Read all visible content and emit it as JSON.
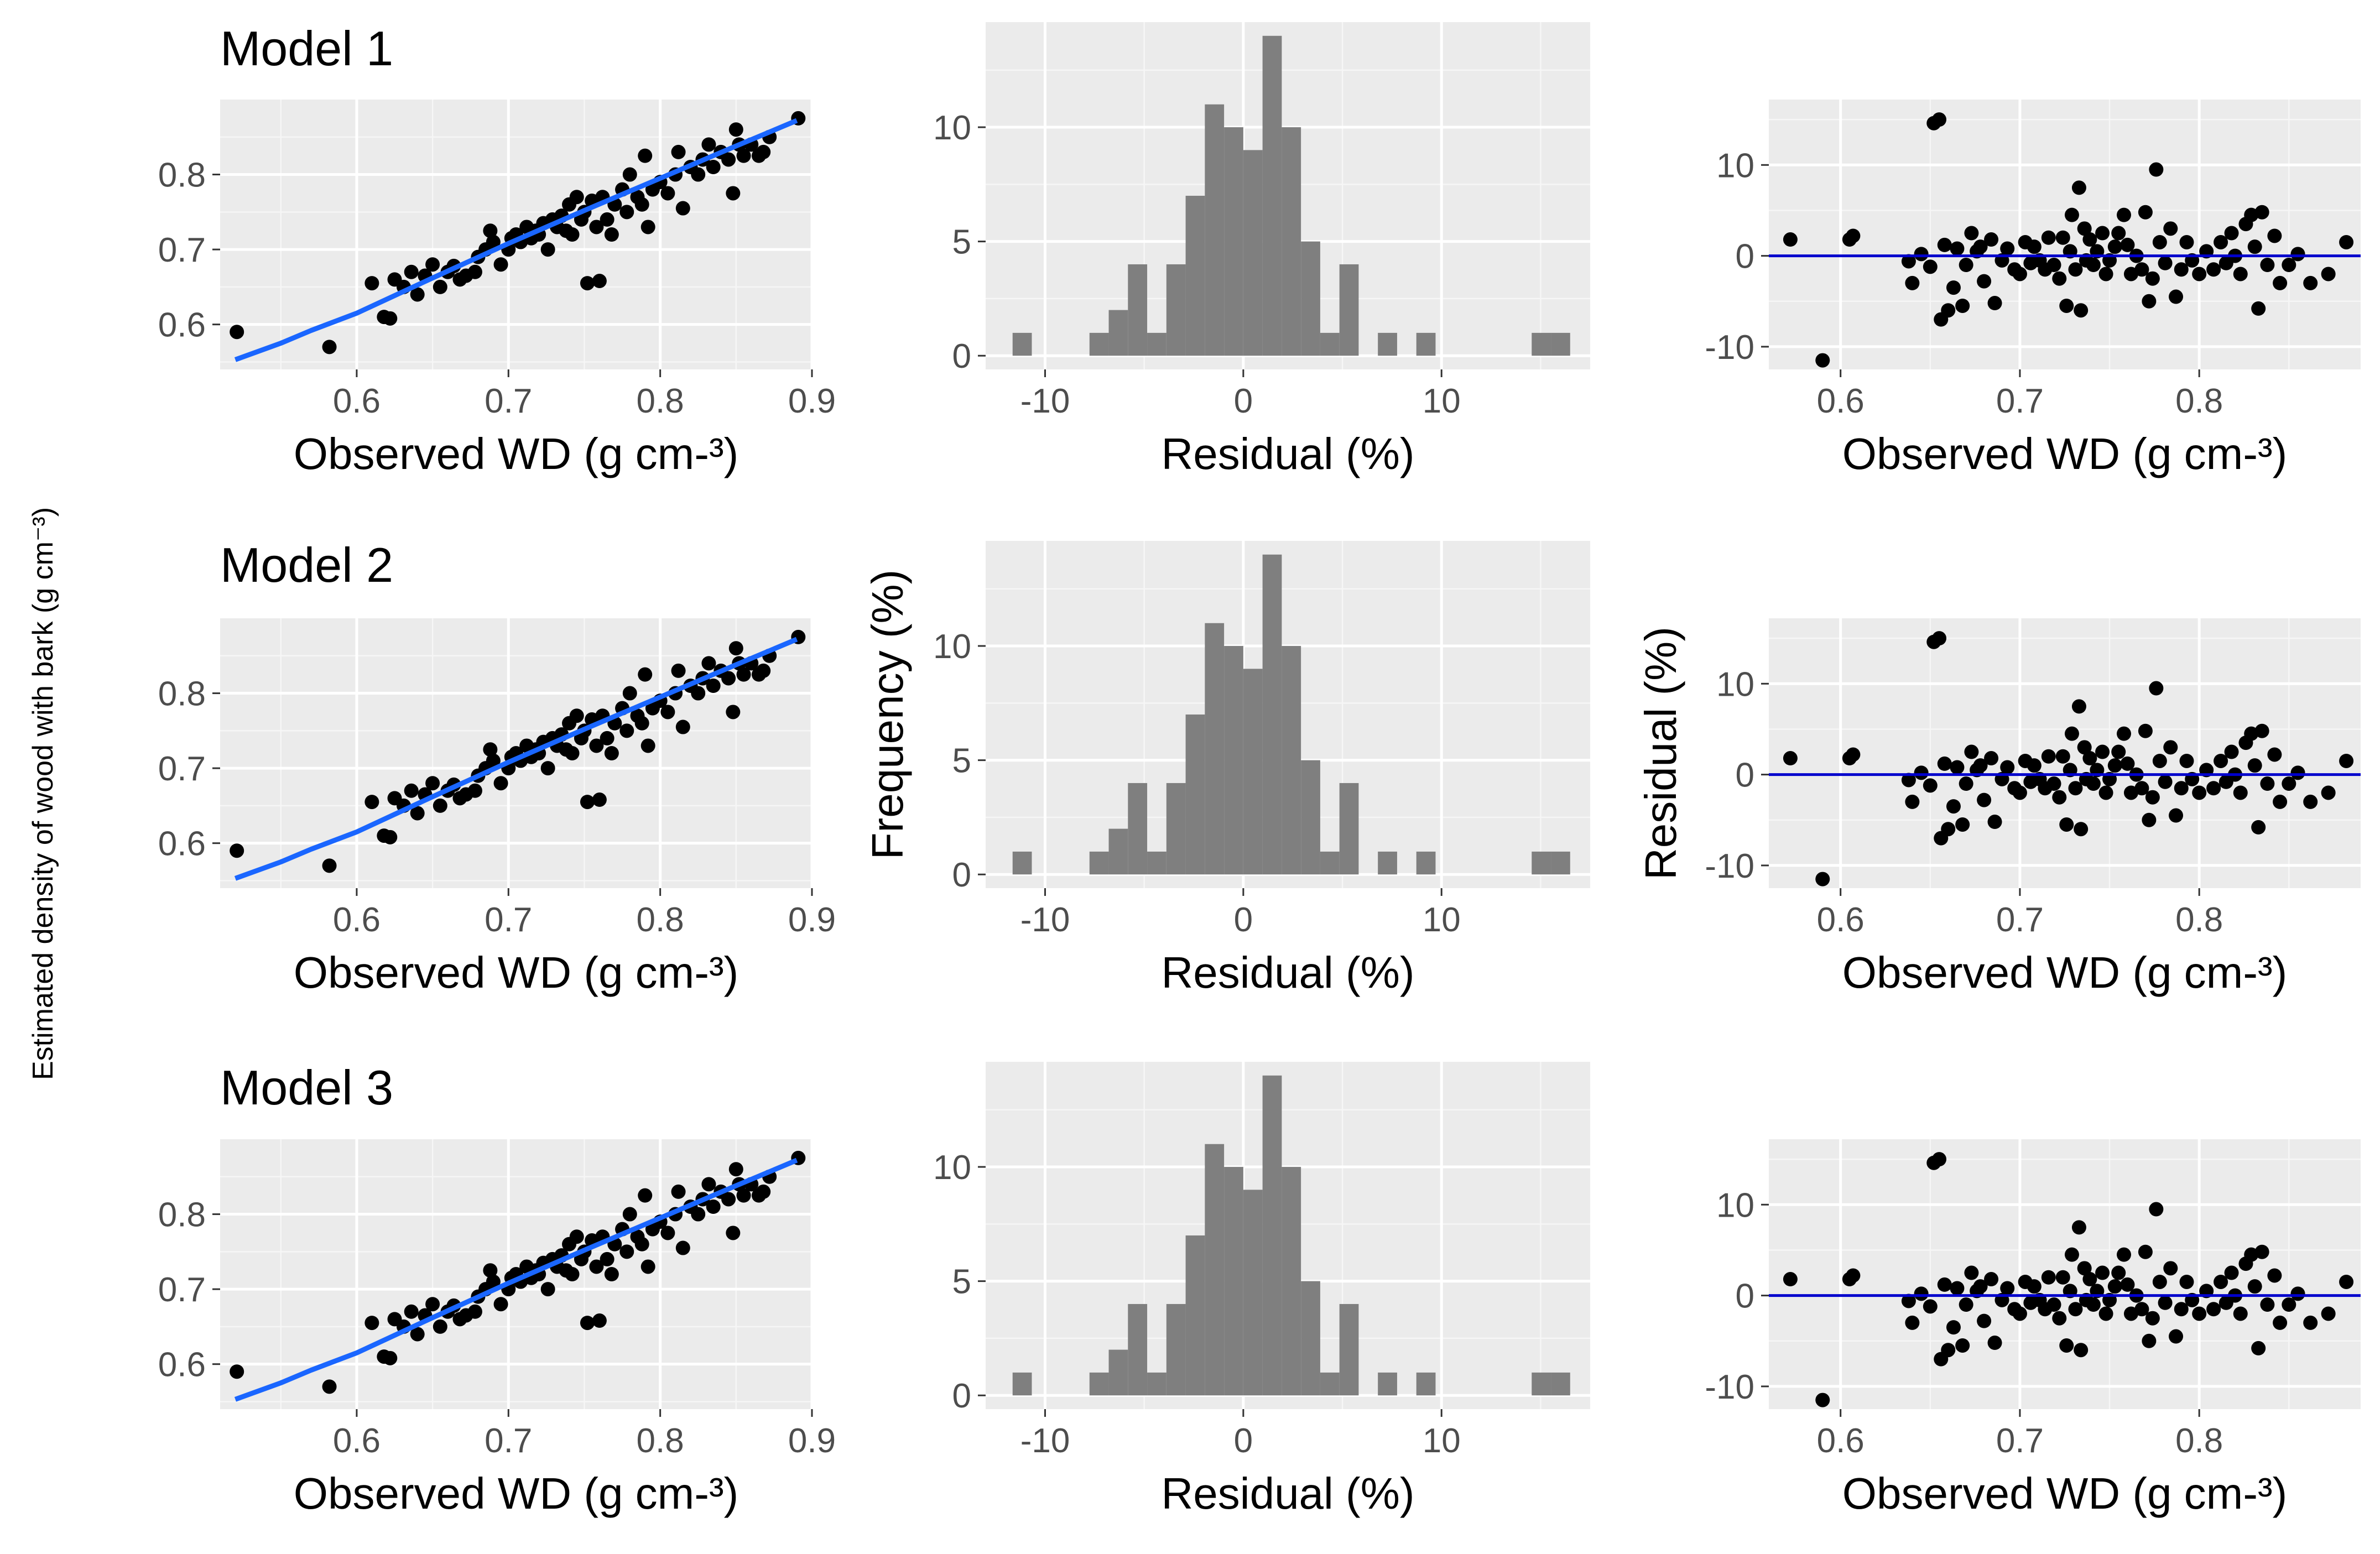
{
  "figure": {
    "global_ylabel": "Estimated density of wood with bark (g cm⁻³)",
    "models": [
      "Model 1",
      "Model 2",
      "Model 3"
    ]
  },
  "colors": {
    "points": "#000000",
    "fit_line": "#1a66ff",
    "zero_line": "#0000cc",
    "bars": "#7f7f7f",
    "panel_bg": "#ebebeb"
  },
  "chart_data": [
    {
      "type": "scatter",
      "column": "observed_vs_estimated",
      "xlabels": [
        "Observed WD  (g cm-³)",
        "Observed WD (g cm-³)",
        "Observed WD (g cm-³)"
      ],
      "ylabel": "",
      "xlim": [
        0.51,
        0.9
      ],
      "ylim": [
        0.54,
        0.9
      ],
      "xticks": [
        0.6,
        0.7,
        0.8,
        0.9
      ],
      "yticks": [
        0.6,
        0.7,
        0.8
      ],
      "xtick_labels": [
        "0.6",
        "0.7",
        "0.8",
        "0.9"
      ],
      "ytick_labels": [
        "0.6",
        "0.7",
        "0.8"
      ],
      "fit_line": {
        "x": [
          0.52,
          0.55,
          0.57,
          0.6,
          0.65,
          0.7,
          0.75,
          0.8,
          0.85,
          0.89
        ],
        "y": [
          0.553,
          0.575,
          0.592,
          0.615,
          0.662,
          0.708,
          0.752,
          0.795,
          0.838,
          0.872
        ]
      },
      "points": [
        [
          0.521,
          0.59
        ],
        [
          0.582,
          0.57
        ],
        [
          0.61,
          0.655
        ],
        [
          0.618,
          0.61
        ],
        [
          0.622,
          0.608
        ],
        [
          0.625,
          0.66
        ],
        [
          0.631,
          0.65
        ],
        [
          0.636,
          0.67
        ],
        [
          0.64,
          0.64
        ],
        [
          0.645,
          0.665
        ],
        [
          0.65,
          0.68
        ],
        [
          0.655,
          0.65
        ],
        [
          0.66,
          0.67
        ],
        [
          0.664,
          0.678
        ],
        [
          0.668,
          0.66
        ],
        [
          0.672,
          0.665
        ],
        [
          0.678,
          0.67
        ],
        [
          0.68,
          0.69
        ],
        [
          0.685,
          0.7
        ],
        [
          0.688,
          0.725
        ],
        [
          0.69,
          0.71
        ],
        [
          0.695,
          0.68
        ],
        [
          0.7,
          0.7
        ],
        [
          0.702,
          0.715
        ],
        [
          0.705,
          0.72
        ],
        [
          0.708,
          0.71
        ],
        [
          0.712,
          0.73
        ],
        [
          0.715,
          0.715
        ],
        [
          0.718,
          0.725
        ],
        [
          0.72,
          0.72
        ],
        [
          0.723,
          0.735
        ],
        [
          0.726,
          0.7
        ],
        [
          0.729,
          0.74
        ],
        [
          0.732,
          0.73
        ],
        [
          0.735,
          0.745
        ],
        [
          0.738,
          0.725
        ],
        [
          0.74,
          0.76
        ],
        [
          0.742,
          0.72
        ],
        [
          0.745,
          0.77
        ],
        [
          0.748,
          0.74
        ],
        [
          0.75,
          0.75
        ],
        [
          0.752,
          0.655
        ],
        [
          0.755,
          0.765
        ],
        [
          0.758,
          0.73
        ],
        [
          0.76,
          0.658
        ],
        [
          0.762,
          0.77
        ],
        [
          0.765,
          0.74
        ],
        [
          0.768,
          0.72
        ],
        [
          0.77,
          0.76
        ],
        [
          0.775,
          0.78
        ],
        [
          0.778,
          0.75
        ],
        [
          0.78,
          0.8
        ],
        [
          0.785,
          0.77
        ],
        [
          0.788,
          0.76
        ],
        [
          0.79,
          0.825
        ],
        [
          0.792,
          0.73
        ],
        [
          0.795,
          0.78
        ],
        [
          0.8,
          0.79
        ],
        [
          0.805,
          0.775
        ],
        [
          0.81,
          0.8
        ],
        [
          0.812,
          0.83
        ],
        [
          0.815,
          0.755
        ],
        [
          0.82,
          0.81
        ],
        [
          0.825,
          0.8
        ],
        [
          0.828,
          0.82
        ],
        [
          0.832,
          0.84
        ],
        [
          0.835,
          0.81
        ],
        [
          0.84,
          0.83
        ],
        [
          0.845,
          0.82
        ],
        [
          0.848,
          0.775
        ],
        [
          0.85,
          0.86
        ],
        [
          0.852,
          0.84
        ],
        [
          0.855,
          0.825
        ],
        [
          0.86,
          0.84
        ],
        [
          0.865,
          0.825
        ],
        [
          0.868,
          0.83
        ],
        [
          0.872,
          0.85
        ],
        [
          0.891,
          0.875
        ]
      ]
    },
    {
      "type": "bar",
      "column": "residual_histogram",
      "xlabel": "Residual (%)",
      "ylabel": "Frequency (%)",
      "xlim": [
        -13,
        17.5
      ],
      "ylim": [
        -0.6,
        14.6
      ],
      "xticks": [
        -10,
        0,
        10
      ],
      "yticks": [
        0,
        5,
        10
      ],
      "xtick_labels": [
        "-10",
        "0",
        "10"
      ],
      "ytick_labels": [
        "0",
        "5",
        "10"
      ],
      "bin_width": 0.97,
      "bin_starts": [
        -11.64,
        -7.76,
        -6.79,
        -5.82,
        -4.85,
        -3.88,
        -2.91,
        -1.94,
        -0.97,
        0.0,
        0.97,
        1.94,
        2.91,
        3.88,
        4.85,
        6.79,
        8.73,
        14.55,
        15.52
      ],
      "values": [
        1,
        1,
        2,
        4,
        1,
        4,
        7,
        11,
        10,
        9,
        14,
        10,
        5,
        1,
        4,
        1,
        1,
        1,
        1
      ]
    },
    {
      "type": "scatter",
      "column": "residual_vs_observed",
      "xlabels": [
        "Observed WD  (g cm-³)",
        "Observed WD (g cm-³)",
        "Observed WD (g cm-³)"
      ],
      "ylabel": "Residual (%)",
      "xlim": [
        0.56,
        0.89
      ],
      "ylim": [
        -12.5,
        17.2
      ],
      "xticks": [
        0.6,
        0.7,
        0.8
      ],
      "yticks": [
        -10,
        0,
        10
      ],
      "xtick_labels": [
        "0.6",
        "0.7",
        "0.8"
      ],
      "ytick_labels": [
        "-10",
        "0",
        "10"
      ],
      "zero_line": 0,
      "points": [
        [
          0.572,
          1.8
        ],
        [
          0.59,
          -11.5
        ],
        [
          0.605,
          1.8
        ],
        [
          0.607,
          2.2
        ],
        [
          0.638,
          -0.6
        ],
        [
          0.64,
          -3.0
        ],
        [
          0.645,
          0.2
        ],
        [
          0.65,
          -1.2
        ],
        [
          0.652,
          14.6
        ],
        [
          0.655,
          15.0
        ],
        [
          0.656,
          -7.0
        ],
        [
          0.658,
          1.2
        ],
        [
          0.66,
          -6.0
        ],
        [
          0.663,
          -3.5
        ],
        [
          0.665,
          0.8
        ],
        [
          0.668,
          -5.5
        ],
        [
          0.67,
          -1.0
        ],
        [
          0.673,
          2.5
        ],
        [
          0.676,
          0.5
        ],
        [
          0.678,
          1.0
        ],
        [
          0.68,
          -2.8
        ],
        [
          0.684,
          1.8
        ],
        [
          0.686,
          -5.2
        ],
        [
          0.69,
          -0.5
        ],
        [
          0.693,
          0.8
        ],
        [
          0.697,
          -1.5
        ],
        [
          0.7,
          -2.0
        ],
        [
          0.703,
          1.5
        ],
        [
          0.706,
          -0.8
        ],
        [
          0.708,
          1.0
        ],
        [
          0.711,
          -0.5
        ],
        [
          0.714,
          -1.5
        ],
        [
          0.716,
          2.0
        ],
        [
          0.719,
          -1.0
        ],
        [
          0.722,
          -2.5
        ],
        [
          0.724,
          2.0
        ],
        [
          0.726,
          -5.5
        ],
        [
          0.728,
          0.5
        ],
        [
          0.729,
          4.5
        ],
        [
          0.731,
          -1.5
        ],
        [
          0.733,
          7.5
        ],
        [
          0.734,
          -6.0
        ],
        [
          0.736,
          3.0
        ],
        [
          0.737,
          -0.5
        ],
        [
          0.739,
          1.8
        ],
        [
          0.741,
          -1.0
        ],
        [
          0.743,
          0.5
        ],
        [
          0.746,
          2.5
        ],
        [
          0.748,
          -2.0
        ],
        [
          0.75,
          -0.5
        ],
        [
          0.753,
          1.0
        ],
        [
          0.755,
          2.5
        ],
        [
          0.758,
          4.5
        ],
        [
          0.76,
          1.2
        ],
        [
          0.762,
          -2.0
        ],
        [
          0.765,
          0.0
        ],
        [
          0.768,
          -1.5
        ],
        [
          0.77,
          4.8
        ],
        [
          0.772,
          -5.0
        ],
        [
          0.774,
          -2.5
        ],
        [
          0.776,
          9.5
        ],
        [
          0.778,
          1.5
        ],
        [
          0.781,
          -0.8
        ],
        [
          0.784,
          3.0
        ],
        [
          0.787,
          -4.5
        ],
        [
          0.79,
          -1.5
        ],
        [
          0.793,
          1.5
        ],
        [
          0.796,
          -0.5
        ],
        [
          0.8,
          -2.0
        ],
        [
          0.804,
          0.5
        ],
        [
          0.808,
          -1.5
        ],
        [
          0.812,
          1.5
        ],
        [
          0.815,
          -0.8
        ],
        [
          0.818,
          2.5
        ],
        [
          0.82,
          0.0
        ],
        [
          0.823,
          -2.0
        ],
        [
          0.826,
          3.5
        ],
        [
          0.829,
          4.5
        ],
        [
          0.831,
          1.0
        ],
        [
          0.833,
          -5.8
        ],
        [
          0.835,
          4.8
        ],
        [
          0.838,
          -1.0
        ],
        [
          0.842,
          2.2
        ],
        [
          0.845,
          -3.0
        ],
        [
          0.85,
          -1.0
        ],
        [
          0.855,
          0.2
        ],
        [
          0.862,
          -3.0
        ],
        [
          0.872,
          -2.0
        ],
        [
          0.882,
          1.5
        ]
      ]
    }
  ]
}
